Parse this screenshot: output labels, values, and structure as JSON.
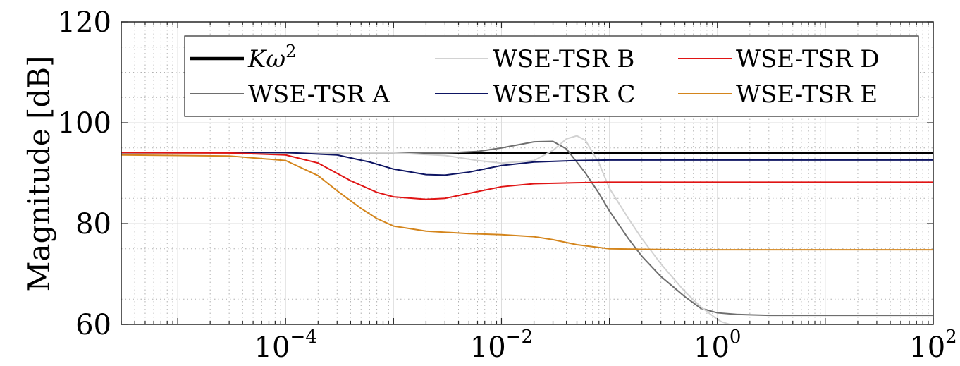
{
  "chart_data": {
    "type": "line",
    "title": "",
    "xlabel": "",
    "ylabel": "Magnitude [dB]",
    "x_scale": "log",
    "xlim": [
      3e-06,
      100
    ],
    "ylim": [
      60,
      120
    ],
    "x_ticks": [
      {
        "value": 0.0001,
        "base": "10",
        "exp": "−4"
      },
      {
        "value": 0.01,
        "base": "10",
        "exp": "−2"
      },
      {
        "value": 1,
        "base": "10",
        "exp": "0"
      },
      {
        "value": 100,
        "base": "10",
        "exp": "2"
      }
    ],
    "y_ticks": [
      {
        "value": 60,
        "label": "60"
      },
      {
        "value": 80,
        "label": "80"
      },
      {
        "value": 100,
        "label": "100"
      },
      {
        "value": 120,
        "label": "120"
      }
    ],
    "grid": true,
    "minor_grid": true,
    "legend_position": "top-right",
    "legend_columns": 3,
    "series": [
      {
        "name": "Kω2",
        "name_main": "Kω",
        "name_sup": "2",
        "color": "#000000",
        "width": 3.5,
        "x": [
          3e-06,
          100
        ],
        "y": [
          94,
          94
        ]
      },
      {
        "name": "WSE-TSR A",
        "color": "#6e6e6e",
        "width": 2,
        "x": [
          3e-06,
          0.0001,
          0.001,
          0.003,
          0.006,
          0.01,
          0.02,
          0.03,
          0.04,
          0.06,
          0.08,
          0.1,
          0.15,
          0.2,
          0.3,
          0.5,
          0.7,
          1,
          1.5,
          2,
          3,
          5,
          10,
          100
        ],
        "y": [
          94,
          94,
          94,
          94,
          94.3,
          95,
          96.2,
          96.3,
          94.8,
          90,
          86,
          82.5,
          77,
          73.5,
          69.5,
          65.5,
          63.2,
          62.3,
          62,
          61.9,
          61.8,
          61.8,
          61.8,
          61.8
        ]
      },
      {
        "name": "WSE-TSR B",
        "color": "#d2d2d2",
        "width": 2,
        "x": [
          3e-06,
          0.0001,
          0.001,
          0.003,
          0.006,
          0.01,
          0.02,
          0.03,
          0.04,
          0.05,
          0.06,
          0.08,
          0.1,
          0.15,
          0.2,
          0.3,
          0.5,
          0.7,
          1,
          1.1,
          1.3
        ],
        "y": [
          94,
          94,
          94,
          93.5,
          92.5,
          92,
          92.5,
          94.5,
          96.8,
          97.4,
          96.5,
          92,
          87,
          81,
          77,
          72,
          66.5,
          63.5,
          61,
          60.5,
          60
        ]
      },
      {
        "name": "WSE-TSR C",
        "color": "#0e1563",
        "width": 2,
        "x": [
          3e-06,
          0.0001,
          0.0003,
          0.0006,
          0.001,
          0.002,
          0.003,
          0.005,
          0.01,
          0.02,
          0.05,
          0.1,
          1,
          100
        ],
        "y": [
          94.1,
          94.1,
          93.6,
          92.2,
          90.8,
          89.7,
          89.6,
          90.2,
          91.5,
          92.2,
          92.5,
          92.6,
          92.6,
          92.6
        ]
      },
      {
        "name": "WSE-TSR D",
        "color": "#e01414",
        "width": 2,
        "x": [
          3e-06,
          3e-05,
          0.0001,
          0.0002,
          0.0004,
          0.0007,
          0.001,
          0.002,
          0.003,
          0.005,
          0.01,
          0.02,
          0.05,
          0.1,
          1,
          100
        ],
        "y": [
          94.1,
          94,
          93.6,
          92,
          88.5,
          86.2,
          85.3,
          84.8,
          85,
          86,
          87.3,
          87.9,
          88.1,
          88.2,
          88.2,
          88.2
        ]
      },
      {
        "name": "WSE-TSR E",
        "color": "#d4851c",
        "width": 2,
        "x": [
          3e-06,
          3e-05,
          0.0001,
          0.0002,
          0.0003,
          0.0005,
          0.0007,
          0.001,
          0.002,
          0.005,
          0.01,
          0.02,
          0.03,
          0.05,
          0.1,
          0.2,
          0.5,
          1,
          100
        ],
        "y": [
          93.6,
          93.4,
          92.5,
          89.5,
          86.5,
          83,
          81,
          79.5,
          78.5,
          78,
          77.8,
          77.4,
          76.8,
          75.8,
          75,
          74.9,
          74.8,
          74.8,
          74.8
        ]
      }
    ]
  }
}
